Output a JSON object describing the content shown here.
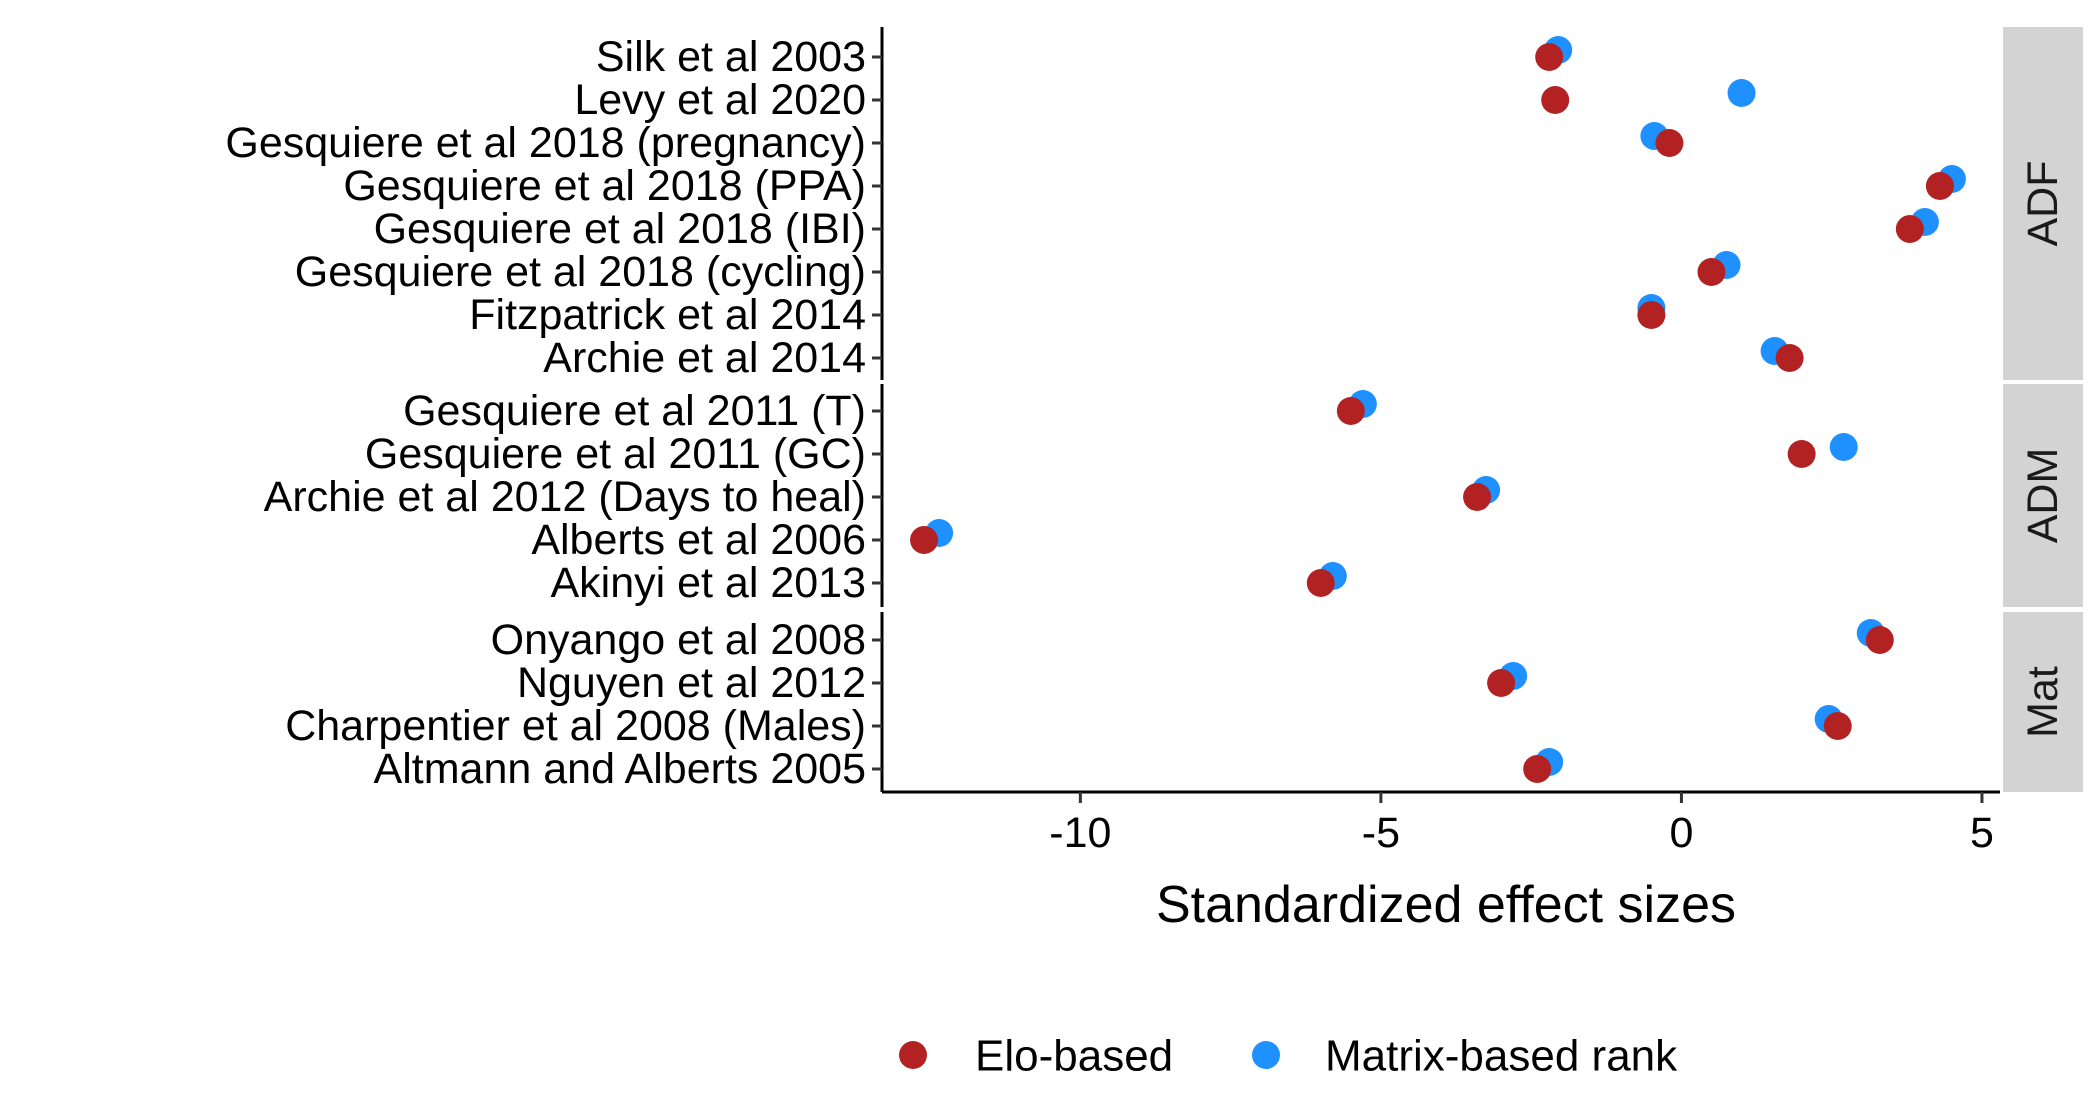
{
  "chart_data": {
    "type": "scatter",
    "xlabel": "Standardized effect sizes",
    "ylabel": "",
    "xlim": [
      -13.3,
      5.3
    ],
    "xticks": [
      -10,
      -5,
      0,
      5
    ],
    "xtick_labels": [
      "-10",
      "-5",
      "0",
      "5"
    ],
    "grid": false,
    "legend_position": "bottom",
    "panels": [
      {
        "label": "ADF",
        "rows": [
          "Silk et al 2003",
          "Levy et al 2020",
          "Gesquiere et al 2018 (pregnancy)",
          "Gesquiere et al 2018 (PPA)",
          "Gesquiere et al 2018 (IBI)",
          "Gesquiere et al 2018 (cycling)",
          "Fitzpatrick et al 2014",
          "Archie et al 2014"
        ]
      },
      {
        "label": "ADM",
        "rows": [
          "Gesquiere et al 2011 (T)",
          "Gesquiere et al 2011 (GC)",
          "Archie et al 2012 (Days to heal)",
          "Alberts et al 2006",
          "Akinyi et al 2013"
        ]
      },
      {
        "label": "Mat",
        "rows": [
          "Onyango et al 2008",
          "Nguyen et al 2012",
          "Charpentier et al 2008 (Males)",
          "Altmann and Alberts 2005"
        ]
      }
    ],
    "series": [
      {
        "name": "Elo-based",
        "color": "#b22222",
        "values": [
          [
            -2.2,
            -2.1,
            -0.2,
            4.3,
            3.8,
            0.5,
            -0.5,
            1.8
          ],
          [
            -5.5,
            2.0,
            -3.4,
            -12.6,
            -6.0
          ],
          [
            3.3,
            -3.0,
            2.6,
            -2.4
          ]
        ]
      },
      {
        "name": "Matrix-based rank",
        "color": "#1e90ff",
        "values": [
          [
            -2.05,
            1.0,
            -0.45,
            4.5,
            4.05,
            0.75,
            -0.5,
            1.55
          ],
          [
            -5.3,
            2.7,
            -3.25,
            -12.35,
            -5.8
          ],
          [
            3.15,
            -2.8,
            2.45,
            -2.2
          ]
        ]
      }
    ]
  }
}
